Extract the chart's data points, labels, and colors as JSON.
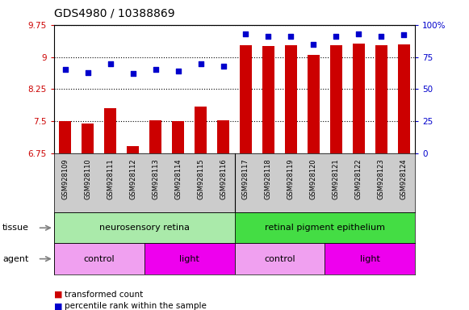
{
  "title": "GDS4980 / 10388869",
  "samples": [
    "GSM928109",
    "GSM928110",
    "GSM928111",
    "GSM928112",
    "GSM928113",
    "GSM928114",
    "GSM928115",
    "GSM928116",
    "GSM928117",
    "GSM928118",
    "GSM928119",
    "GSM928120",
    "GSM928121",
    "GSM928122",
    "GSM928123",
    "GSM928124"
  ],
  "bar_values": [
    7.5,
    7.45,
    7.8,
    6.92,
    7.52,
    7.5,
    7.84,
    7.52,
    9.28,
    9.25,
    9.28,
    9.05,
    9.28,
    9.32,
    9.28,
    9.3
  ],
  "dot_pct": [
    65,
    63,
    70,
    62,
    65,
    64,
    70,
    68,
    93,
    91,
    91,
    85,
    91,
    93,
    91,
    92
  ],
  "bar_color": "#cc0000",
  "dot_color": "#0000cc",
  "ylim_left": [
    6.75,
    9.75
  ],
  "ylim_right": [
    0,
    100
  ],
  "yticks_left": [
    6.75,
    7.5,
    8.25,
    9.0,
    9.75
  ],
  "ytick_labels_left": [
    "6.75",
    "7.5",
    "8.25",
    "9",
    "9.75"
  ],
  "yticks_right": [
    0,
    25,
    50,
    75,
    100
  ],
  "ytick_labels_right": [
    "0",
    "25",
    "50",
    "75",
    "100%"
  ],
  "tissue_groups": [
    {
      "label": "neurosensory retina",
      "start": 0,
      "end": 8,
      "color": "#aaeaaa"
    },
    {
      "label": "retinal pigment epithelium",
      "start": 8,
      "end": 16,
      "color": "#44dd44"
    }
  ],
  "agent_groups": [
    {
      "label": "control",
      "start": 0,
      "end": 4,
      "color": "#f0a0f0"
    },
    {
      "label": "light",
      "start": 4,
      "end": 8,
      "color": "#ee00ee"
    },
    {
      "label": "control",
      "start": 8,
      "end": 12,
      "color": "#f0a0f0"
    },
    {
      "label": "light",
      "start": 12,
      "end": 16,
      "color": "#ee00ee"
    }
  ],
  "bar_width": 0.55,
  "plot_bg_color": "#ffffff",
  "label_box_color": "#cccccc",
  "grid_dotted_color": "#000000",
  "title_fontsize": 10,
  "tick_fontsize": 7.5,
  "sample_fontsize": 6,
  "row_fontsize": 8,
  "legend_fontsize": 7.5
}
